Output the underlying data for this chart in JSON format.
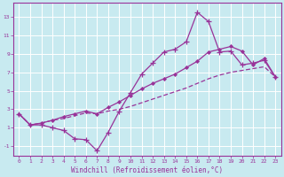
{
  "xlabel": "Windchill (Refroidissement éolien,°C)",
  "background_color": "#c8eaf0",
  "line_color": "#993399",
  "grid_color": "#b0d8e0",
  "xlim": [
    -0.5,
    23.5
  ],
  "ylim": [
    -2,
    14.5
  ],
  "xticks": [
    0,
    1,
    2,
    3,
    4,
    5,
    6,
    7,
    8,
    9,
    10,
    11,
    12,
    13,
    14,
    15,
    16,
    17,
    18,
    19,
    20,
    21,
    22,
    23
  ],
  "yticks": [
    -1,
    1,
    3,
    5,
    7,
    9,
    11,
    13
  ],
  "line1_x": [
    0,
    1,
    2,
    3,
    4,
    5,
    6,
    7,
    8,
    9,
    10,
    11,
    12,
    13,
    14,
    15,
    16,
    17,
    18,
    19,
    20,
    21,
    22,
    23
  ],
  "line1_y": [
    2.5,
    1.3,
    1.3,
    1.0,
    0.7,
    -0.2,
    -0.3,
    -1.5,
    0.5,
    2.8,
    4.8,
    6.8,
    8.0,
    9.2,
    9.5,
    10.3,
    13.5,
    12.5,
    9.2,
    9.3,
    7.8,
    8.0,
    8.3,
    6.5
  ],
  "line2_x": [
    0,
    1,
    2,
    3,
    4,
    5,
    6,
    7,
    8,
    9,
    10,
    11,
    12,
    13,
    14,
    15,
    16,
    17,
    18,
    19,
    20,
    21,
    22,
    23
  ],
  "line2_y": [
    2.5,
    1.3,
    1.5,
    1.8,
    2.2,
    2.5,
    2.8,
    2.5,
    3.2,
    3.8,
    4.5,
    5.2,
    5.8,
    6.3,
    6.8,
    7.5,
    8.2,
    9.2,
    9.5,
    9.8,
    9.3,
    7.8,
    8.5,
    6.5
  ],
  "line3_x": [
    0,
    1,
    2,
    3,
    4,
    5,
    6,
    7,
    8,
    9,
    10,
    11,
    12,
    13,
    14,
    15,
    16,
    17,
    18,
    19,
    20,
    21,
    22,
    23
  ],
  "line3_y": [
    2.5,
    1.3,
    1.5,
    1.8,
    2.0,
    2.3,
    2.6,
    2.5,
    2.8,
    3.0,
    3.3,
    3.7,
    4.1,
    4.5,
    4.9,
    5.3,
    5.8,
    6.3,
    6.7,
    7.0,
    7.2,
    7.4,
    7.6,
    6.5
  ]
}
